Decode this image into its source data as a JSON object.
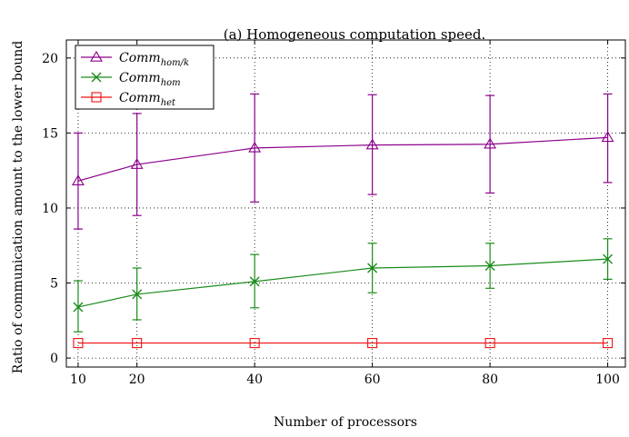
{
  "chart_data": {
    "type": "line",
    "title": "(a) Homogeneous computation speed.",
    "xlabel": "Number of processors",
    "ylabel": "Ratio of communication amount to the lower bound",
    "x": [
      10,
      20,
      40,
      60,
      80,
      100
    ],
    "x_ticks": [
      "10",
      "20",
      "40",
      "60",
      "80",
      "100"
    ],
    "xlim": [
      8,
      103
    ],
    "y_ticks": [
      "0",
      "5",
      "10",
      "15",
      "20"
    ],
    "ylim": [
      -0.6,
      21.2
    ],
    "grid": true,
    "legend_position": "top-left",
    "series": [
      {
        "name_base": "Comm",
        "name_sub": "hom/k",
        "color": "#8b008b",
        "marker": "triangle",
        "values": [
          11.8,
          12.9,
          14.0,
          14.2,
          14.25,
          14.7
        ],
        "error_low": [
          8.6,
          9.5,
          10.4,
          10.9,
          11.0,
          11.7
        ],
        "error_high": [
          15.0,
          16.3,
          17.6,
          17.55,
          17.5,
          17.6
        ]
      },
      {
        "name_base": "Comm",
        "name_sub": "hom",
        "color": "#1a8c1a",
        "marker": "x",
        "values": [
          3.4,
          4.25,
          5.1,
          6.0,
          6.15,
          6.6
        ],
        "error_low": [
          1.75,
          2.55,
          3.35,
          4.35,
          4.65,
          5.25
        ],
        "error_high": [
          5.15,
          6.0,
          6.9,
          7.65,
          7.65,
          7.95
        ]
      },
      {
        "name_base": "Comm",
        "name_sub": "het",
        "color": "#ee1111",
        "marker": "square",
        "values": [
          1.0,
          1.0,
          1.0,
          1.0,
          1.0,
          1.0
        ],
        "error_low": [
          1.0,
          1.0,
          1.0,
          1.0,
          1.0,
          1.0
        ],
        "error_high": [
          1.0,
          1.0,
          1.0,
          1.0,
          1.0,
          1.0
        ]
      }
    ]
  }
}
